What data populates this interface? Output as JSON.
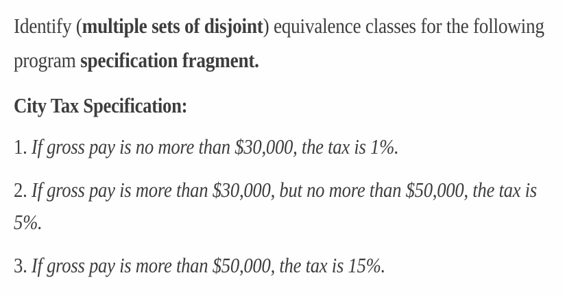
{
  "intro": {
    "line1_plain_a": "Identify (",
    "line1_bold": "multiple sets of disjoint",
    "line1_plain_b": ") equivalence classes for the following",
    "line2_plain": "program ",
    "line2_bold": "specification fragment."
  },
  "heading": "City Tax Specification:",
  "rules": [
    {
      "number": "1.",
      "text": "If gross pay is no more than $30,000, the tax is 1%."
    },
    {
      "number": "2.",
      "text_line1": "If gross pay is more than $30,000, but no more than $50,000, the tax is",
      "text_line2": "5%."
    },
    {
      "number": "3.",
      "text": "If gross pay is more than $50,000, the tax is 15%."
    }
  ]
}
